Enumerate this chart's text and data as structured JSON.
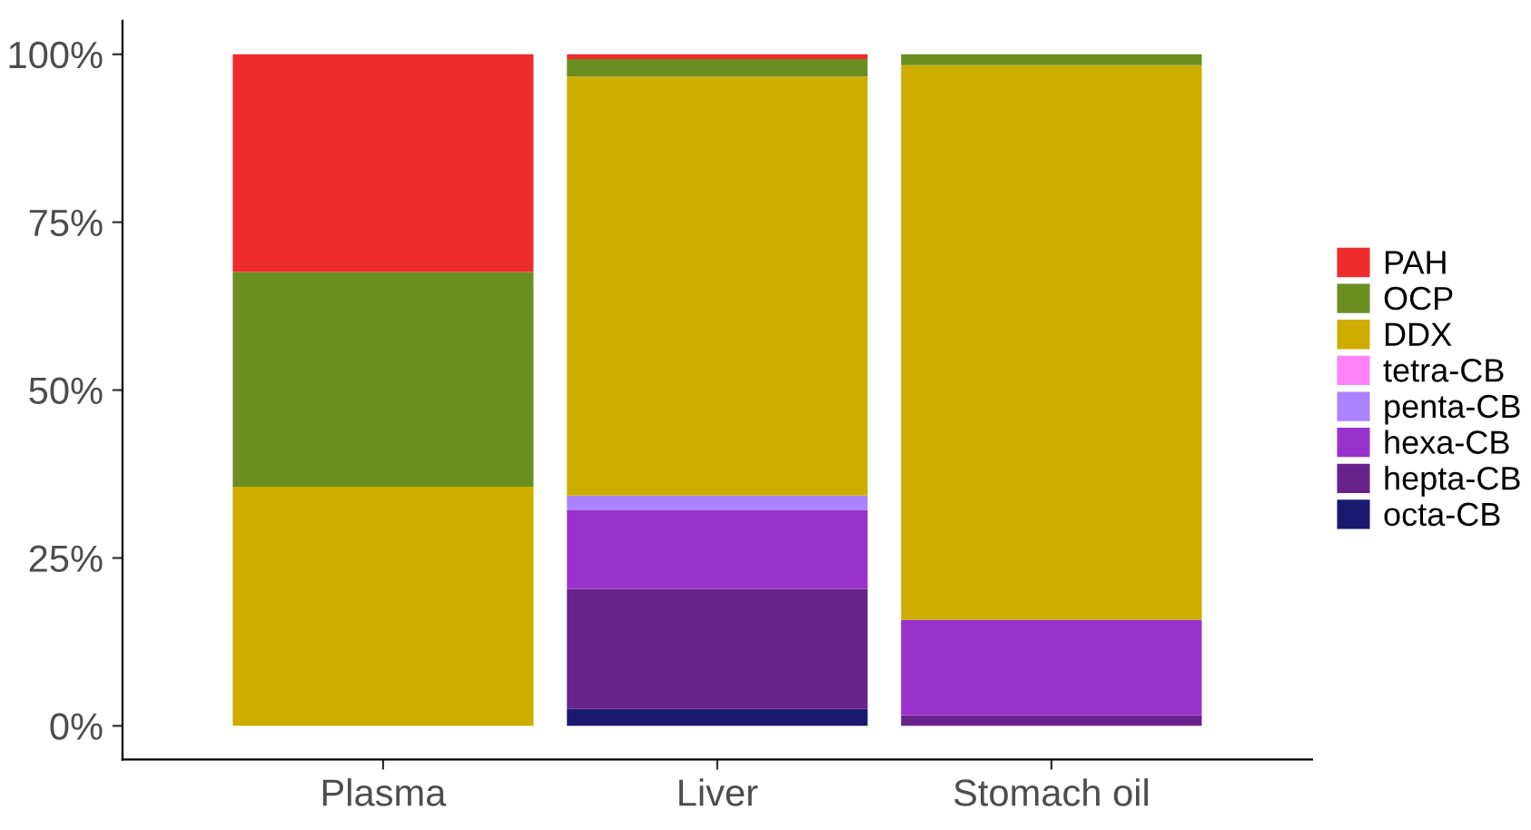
{
  "chart_data": {
    "type": "bar",
    "stacked": true,
    "categories": [
      "Plasma",
      "Liver",
      "Stomach oil"
    ],
    "series": [
      {
        "name": "octa-CB",
        "color": "#191970",
        "values": [
          0,
          2.5,
          0
        ]
      },
      {
        "name": "hepta-CB",
        "color": "#68228b",
        "values": [
          0,
          17.9,
          1.6
        ]
      },
      {
        "name": "hexa-CB",
        "color": "#9932cc",
        "values": [
          0,
          11.7,
          14.2
        ]
      },
      {
        "name": "penta-CB",
        "color": "#ab82ff",
        "values": [
          0,
          2.2,
          0
        ]
      },
      {
        "name": "tetra-CB",
        "color": "#ff83fa",
        "values": [
          0,
          0,
          0
        ]
      },
      {
        "name": "DDX",
        "color": "#cdad00",
        "values": [
          35.6,
          62.4,
          82.6
        ]
      },
      {
        "name": "OCP",
        "color": "#6b8e23",
        "values": [
          32.0,
          2.6,
          1.6
        ]
      },
      {
        "name": "PAH",
        "color": "#ee2c2c",
        "values": [
          32.4,
          0.7,
          0
        ]
      }
    ],
    "ylim": [
      -5,
      105
    ],
    "yticks": [
      {
        "value": 0,
        "label": "0%"
      },
      {
        "value": 25,
        "label": "25%"
      },
      {
        "value": 50,
        "label": "50%"
      },
      {
        "value": 75,
        "label": "75%"
      },
      {
        "value": 100,
        "label": "100%"
      }
    ],
    "grid": false,
    "legend": "right"
  }
}
